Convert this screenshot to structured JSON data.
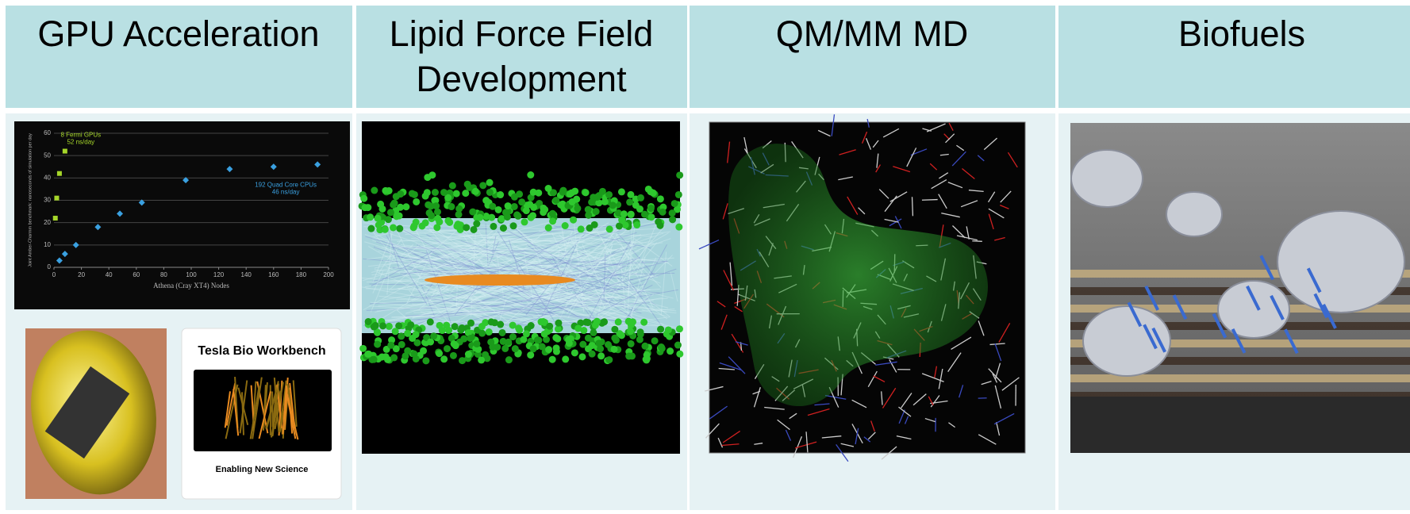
{
  "panels": [
    {
      "title": "GPU Acceleration",
      "chart": {
        "type": "scatter",
        "xlabel": "Athena (Cray XT4) Nodes",
        "ylabel": "Joint Amber-Charmm benchmark: nanoseconds of simulation per day",
        "xlim": [
          0,
          200
        ],
        "ylim": [
          0,
          60
        ],
        "xticks": [
          0,
          20,
          40,
          60,
          80,
          100,
          120,
          140,
          160,
          180,
          200
        ],
        "yticks": [
          0,
          10,
          20,
          30,
          40,
          50,
          60
        ],
        "grid": true,
        "series": [
          {
            "name": "8 Fermi GPUs",
            "label": "52 ns/day",
            "color": "#a6d62a",
            "marker": "square",
            "x": [
              1,
              2,
              4,
              8
            ],
            "values": [
              22,
              31,
              42,
              52
            ]
          },
          {
            "name": "192 Quad Core CPUs",
            "label": "46 ns/day",
            "color": "#3aa0e0",
            "marker": "diamond",
            "x": [
              4,
              8,
              16,
              32,
              48,
              64,
              96,
              128,
              160,
              192
            ],
            "values": [
              3,
              6,
              10,
              18,
              24,
              29,
              39,
              44,
              45,
              46
            ]
          }
        ]
      },
      "card": {
        "title": "Tesla Bio Workbench",
        "caption": "Enabling New Science"
      }
    },
    {
      "title": [
        "Lipid Force Field",
        "Development"
      ]
    },
    {
      "title": "QM/MM MD"
    },
    {
      "title": "Biofuels"
    }
  ]
}
